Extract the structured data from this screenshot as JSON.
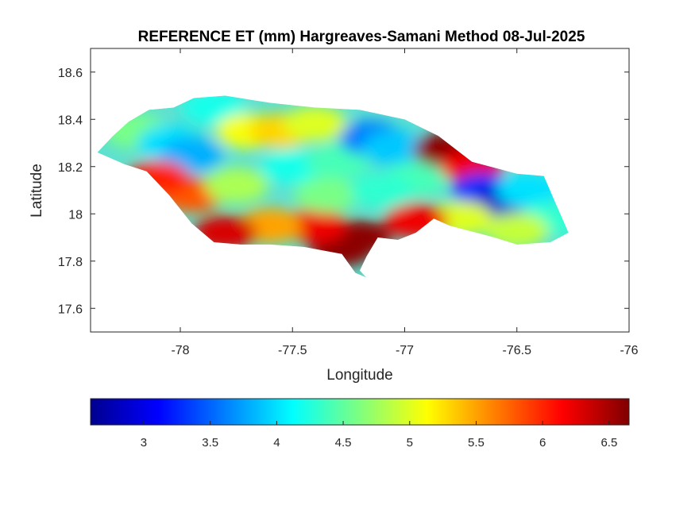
{
  "chart_data": {
    "type": "heatmap",
    "title": "REFERENCE ET (mm) Hargreaves-Samani Method  08-Jul-2025",
    "xlabel": "Longitude",
    "ylabel": "Latitude",
    "xlim": [
      -78.4,
      -76
    ],
    "ylim": [
      17.5,
      18.7
    ],
    "x_ticks": [
      -78,
      -77.5,
      -77,
      -76.5,
      -76
    ],
    "x_tick_labels": [
      "-78",
      "-77.5",
      "-77",
      "-76.5",
      "-76"
    ],
    "y_ticks": [
      17.6,
      17.8,
      18,
      18.2,
      18.4,
      18.6
    ],
    "y_tick_labels": [
      "17.6",
      "17.8",
      "18",
      "18.2",
      "18.4",
      "18.6"
    ],
    "colormap": "jet",
    "colorbar": {
      "orientation": "horizontal",
      "location": "bottom",
      "range": [
        2.6,
        6.65
      ],
      "ticks": [
        3,
        3.5,
        4,
        4.5,
        5,
        5.5,
        6,
        6.5
      ],
      "tick_labels": [
        "3",
        "3.5",
        "4",
        "4.5",
        "5",
        "5.5",
        "6",
        "6.5"
      ]
    },
    "grid": false,
    "region_outline": [
      [
        -78.37,
        18.26
      ],
      [
        -78.3,
        18.33
      ],
      [
        -78.23,
        18.39
      ],
      [
        -78.14,
        18.44
      ],
      [
        -78.03,
        18.45
      ],
      [
        -77.94,
        18.49
      ],
      [
        -77.8,
        18.5
      ],
      [
        -77.6,
        18.47
      ],
      [
        -77.4,
        18.45
      ],
      [
        -77.2,
        18.44
      ],
      [
        -77.0,
        18.4
      ],
      [
        -76.85,
        18.33
      ],
      [
        -76.7,
        18.22
      ],
      [
        -76.5,
        18.17
      ],
      [
        -76.38,
        18.16
      ],
      [
        -76.33,
        18.05
      ],
      [
        -76.27,
        17.92
      ],
      [
        -76.35,
        17.88
      ],
      [
        -76.5,
        17.87
      ],
      [
        -76.6,
        17.9
      ],
      [
        -76.8,
        17.95
      ],
      [
        -76.87,
        17.98
      ],
      [
        -76.95,
        17.92
      ],
      [
        -77.03,
        17.89
      ],
      [
        -77.12,
        17.9
      ],
      [
        -77.17,
        17.82
      ],
      [
        -77.2,
        17.76
      ],
      [
        -77.17,
        17.73
      ],
      [
        -77.22,
        17.75
      ],
      [
        -77.28,
        17.83
      ],
      [
        -77.45,
        17.86
      ],
      [
        -77.6,
        17.87
      ],
      [
        -77.73,
        17.87
      ],
      [
        -77.85,
        17.88
      ],
      [
        -77.95,
        17.96
      ],
      [
        -78.05,
        18.08
      ],
      [
        -78.15,
        18.18
      ],
      [
        -78.25,
        18.21
      ],
      [
        -78.37,
        18.26
      ]
    ],
    "value_hotspots": [
      {
        "lon": -78.2,
        "lat": 18.35,
        "value": 4.6
      },
      {
        "lon": -78.05,
        "lat": 18.3,
        "value": 4.0
      },
      {
        "lon": -77.95,
        "lat": 18.25,
        "value": 3.8
      },
      {
        "lon": -77.85,
        "lat": 18.45,
        "value": 4.2
      },
      {
        "lon": -77.7,
        "lat": 18.35,
        "value": 5.1
      },
      {
        "lon": -77.55,
        "lat": 18.35,
        "value": 5.3
      },
      {
        "lon": -77.4,
        "lat": 18.38,
        "value": 5.0
      },
      {
        "lon": -77.5,
        "lat": 18.2,
        "value": 4.2
      },
      {
        "lon": -77.3,
        "lat": 18.22,
        "value": 4.4
      },
      {
        "lon": -77.15,
        "lat": 18.32,
        "value": 3.6
      },
      {
        "lon": -77.05,
        "lat": 18.28,
        "value": 3.9
      },
      {
        "lon": -76.95,
        "lat": 18.15,
        "value": 4.4
      },
      {
        "lon": -76.82,
        "lat": 18.27,
        "value": 6.6
      },
      {
        "lon": -76.7,
        "lat": 18.2,
        "value": 6.2
      },
      {
        "lon": -76.65,
        "lat": 18.1,
        "value": 3.3
      },
      {
        "lon": -76.55,
        "lat": 18.05,
        "value": 2.9
      },
      {
        "lon": -76.45,
        "lat": 18.1,
        "value": 4.0
      },
      {
        "lon": -76.35,
        "lat": 17.98,
        "value": 4.3
      },
      {
        "lon": -76.5,
        "lat": 17.93,
        "value": 4.9
      },
      {
        "lon": -76.75,
        "lat": 17.98,
        "value": 5.0
      },
      {
        "lon": -76.95,
        "lat": 17.97,
        "value": 6.2
      },
      {
        "lon": -77.2,
        "lat": 17.9,
        "value": 6.6
      },
      {
        "lon": -77.28,
        "lat": 17.85,
        "value": 6.6
      },
      {
        "lon": -77.4,
        "lat": 17.95,
        "value": 6.2
      },
      {
        "lon": -77.6,
        "lat": 17.95,
        "value": 5.5
      },
      {
        "lon": -77.8,
        "lat": 17.92,
        "value": 6.3
      },
      {
        "lon": -77.95,
        "lat": 18.08,
        "value": 5.8
      },
      {
        "lon": -78.1,
        "lat": 18.15,
        "value": 6.0
      },
      {
        "lon": -77.75,
        "lat": 18.12,
        "value": 4.8
      },
      {
        "lon": -77.35,
        "lat": 18.08,
        "value": 4.6
      },
      {
        "lon": -77.1,
        "lat": 18.1,
        "value": 4.3
      }
    ]
  }
}
